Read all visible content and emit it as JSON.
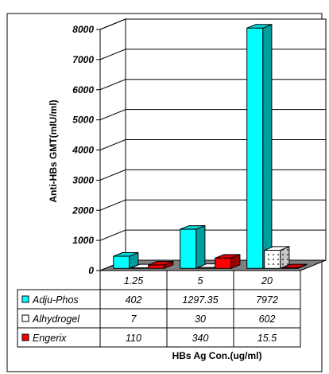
{
  "chart_data": {
    "type": "bar",
    "categories": [
      "1.25",
      "5",
      "20"
    ],
    "series": [
      {
        "name": "Adju-Phos",
        "values": [
          "402",
          "1297.35",
          "7972"
        ],
        "color": "#00ffff"
      },
      {
        "name": "Alhydrogel",
        "values": [
          "7",
          "30",
          "602"
        ],
        "color": "#ffffff",
        "pattern": "dots"
      },
      {
        "name": "Engerix",
        "values": [
          "110",
          "340",
          "15.5"
        ],
        "color": "#ff0000"
      }
    ],
    "ylabel": "Anti-HBs GMT(mIU/ml)",
    "xlabel": "HBs Ag Con.(ug/ml)",
    "ylim": [
      0,
      8000
    ],
    "yticks": [
      "0",
      "1000",
      "2000",
      "3000",
      "4000",
      "5000",
      "6000",
      "7000",
      "8000"
    ],
    "grid": true,
    "legend": "table-below",
    "three_d": true
  }
}
